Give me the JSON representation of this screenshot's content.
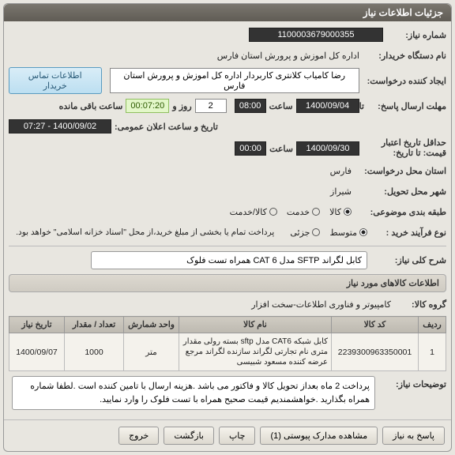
{
  "panel": {
    "title": "جزئیات اطلاعات نیاز",
    "labels": {
      "need_no": "شماره نیاز:",
      "buyer_org": "نام دستگاه خریدار:",
      "requester": "ایجاد کننده درخواست:",
      "answer_deadline": "مهلت ارسال پاسخ:",
      "announce_datetime": "تاریخ و ساعت اعلان عمومی:",
      "validity_from": "حداقل تاریخ اعتبار قیمت: تا تاریخ:",
      "request_province": "استان محل درخواست:",
      "delivery_city": "شهر محل تحویل:",
      "category": "طبقه بندی موضوعی:",
      "purchase_type": "نوع فرآیند خرید :",
      "contact_btn": "اطلاعات تماس خریدار",
      "ta": "تا",
      "saat": "ساعت",
      "rooz_va": "روز و",
      "remaining": "ساعت باقی مانده"
    },
    "values": {
      "need_no": "1100003679000355",
      "buyer_org": "اداره کل اموزش و پرورش استان فارس",
      "requester": "رضا کامیاب کلانتری کاربردار اداره کل اموزش و پرورش استان فارس",
      "answer_from_date": "1400/09/04",
      "answer_from_time": "08:00",
      "answer_days": "2",
      "answer_countdown": "00:07:20",
      "announce": "1400/09/02 - 07:27",
      "validity_date": "1400/09/30",
      "validity_time": "00:00",
      "province": "فارس",
      "city": "شیراز"
    },
    "categories": [
      "کالا",
      "خدمت",
      "کالا/خدمت"
    ],
    "purchase_types": [
      "متوسط",
      "جزئی"
    ],
    "purchase_note": "پرداخت تمام یا بخشی از مبلغ خرید،از محل \"اسناد خزانه اسلامی\" خواهد بود.",
    "selected_category": 0,
    "selected_purchase_type": 0
  },
  "need_desc": {
    "label": "شرح کلی نیاز:",
    "value": "کابل لگراند SFTP مدل CAT 6 همراه تست فلوک"
  },
  "items_section": {
    "title": "اطلاعات کالاهای مورد نیاز",
    "group_label": "گروه کالا:",
    "group_value": "کامپیوتر و فناوری اطلاعات-سخت افزار",
    "columns": {
      "row": "ردیف",
      "code": "کد کالا",
      "name": "نام کالا",
      "unit": "واحد شمارش",
      "qty": "تعداد / مقدار",
      "date": "تاریخ نیاز"
    },
    "rows": [
      {
        "row": "1",
        "code": "2239300963350001",
        "name": "کابل شبکه CAT6 مدل sftp بسته رولی مقدار متری نام تجارتی لگراند سازنده لگراند مرجع عرضه کننده مسعود شبیسی",
        "unit": "متر",
        "qty": "1000",
        "date": "1400/09/07"
      }
    ]
  },
  "notes": {
    "label": "توضیحات نیاز:",
    "text": "پرداخت 2 ماه بعداز تحویل کالا و فاکتور می باشد .هزینه ارسال با تامین کننده است .لطفا شماره همراه بگذارید .خواهشمندیم قیمت صحیح همراه با تست فلوک را وارد نمایید."
  },
  "footer": {
    "back": "پاسخ به نیاز",
    "docs": "مشاهده مدارک پیوستی (1)",
    "print": "چاپ",
    "return": "بازگشت",
    "exit": "خروج"
  }
}
